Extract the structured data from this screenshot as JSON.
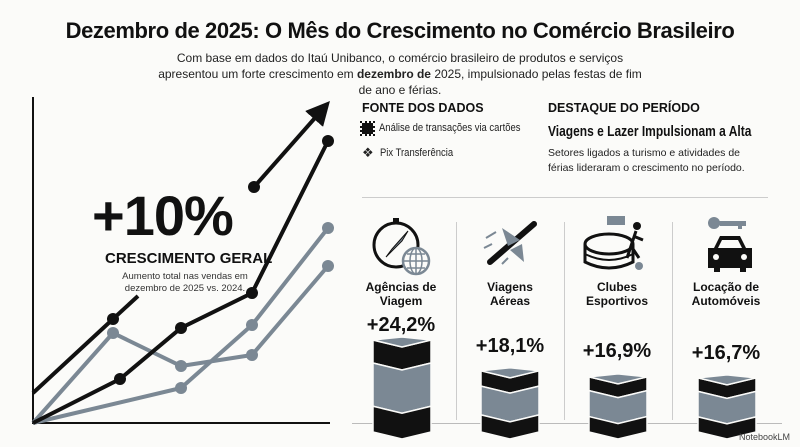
{
  "header": {
    "title": "Dezembro de 2025: O Mês do Crescimento no Comércio Brasileiro",
    "intro_a": "Com base em dados do Itaú Unibanco, o comércio brasileiro de produtos e serviços apresentou um forte crescimento em ",
    "intro_bold": "dezembro de",
    "intro_b": " 2025, impulsionado pelas festas de fim de ano e férias."
  },
  "headline": {
    "value": "+10%",
    "label": "CRESCIMENTO GERAL",
    "description": "Aumento total nas vendas em dezembro de 2025 vs. 2024."
  },
  "sources": {
    "heading": "FONTE DOS DADOS",
    "items": [
      {
        "icon": "chip-icon",
        "label": "Análise de transações via cartões"
      },
      {
        "icon": "pix-icon",
        "label": "Pix Transferência"
      }
    ]
  },
  "highlight": {
    "heading": "DESTAQUE DO PERÍODO",
    "title": "Viagens e Lazer Impulsionam a Alta",
    "text": "Setores ligados a turismo e atividades de férias lideraram o crescimento no período."
  },
  "sectors": [
    {
      "icon": "compass-globe-icon",
      "label_1": "Agências de",
      "label_2": "Viagem",
      "value": "+24,2%",
      "pct": 24.2
    },
    {
      "icon": "airplane-icon",
      "label_1": "Viagens",
      "label_2": "Aéreas",
      "value": "+18,1%",
      "pct": 18.1
    },
    {
      "icon": "stadium-icon",
      "label_1": "Clubes",
      "label_2": "Esportivos",
      "value": "+16,9%",
      "pct": 16.9
    },
    {
      "icon": "car-key-icon",
      "label_1": "Locação de",
      "label_2": "Automóveis",
      "value": "+16,7%",
      "pct": 16.7
    }
  ],
  "colors": {
    "dark": "#111111",
    "gray": "#7b8894",
    "bg": "#fbfbf9"
  },
  "brand": "NotebookLM"
}
